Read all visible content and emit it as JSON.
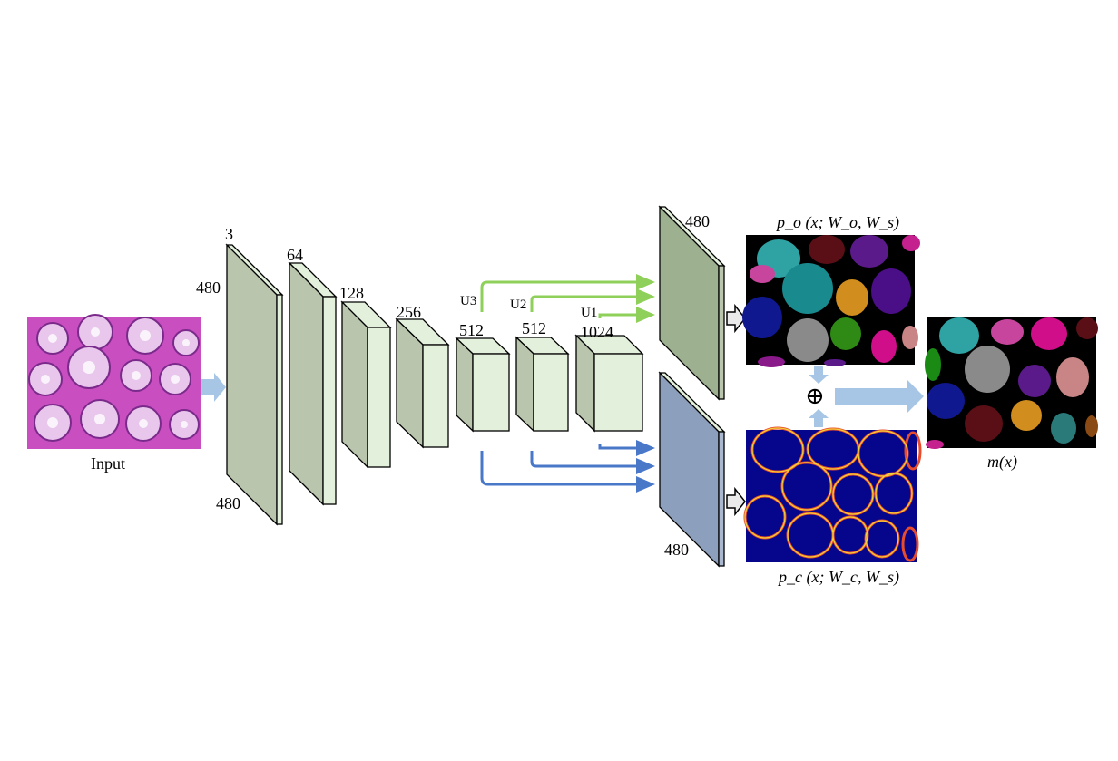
{
  "input": {
    "label": "Input"
  },
  "encoder": {
    "blocks": [
      {
        "channels": "3",
        "height_label": "480",
        "depth_label": "480"
      },
      {
        "channels": "64"
      },
      {
        "channels": "128"
      },
      {
        "channels": "256"
      },
      {
        "channels": "512"
      },
      {
        "channels": "512"
      },
      {
        "channels": "1024"
      }
    ]
  },
  "upsample": {
    "u1": "U1",
    "u2": "U2",
    "u3": "U3"
  },
  "outputs": {
    "object": {
      "size_label": "480"
    },
    "contour": {
      "size_label": "480"
    }
  },
  "formulas": {
    "po": "p_o (x; W_o, W_s)",
    "pc": "p_c (x; W_c, W_s)",
    "mx": "m(x)",
    "fusion": "⊕"
  },
  "colors": {
    "histology_bg": "#c94fc0",
    "gland_fill": "#e9c6ec",
    "block_green": "#e3f0db",
    "block_green_side": "#c2d4b6",
    "output_green": "#9db08f",
    "output_blue": "#8c9fbd",
    "arrow_green": "#8fd05a",
    "arrow_blue": "#4a78c9",
    "flow_arrow": "#a7c6e6"
  }
}
